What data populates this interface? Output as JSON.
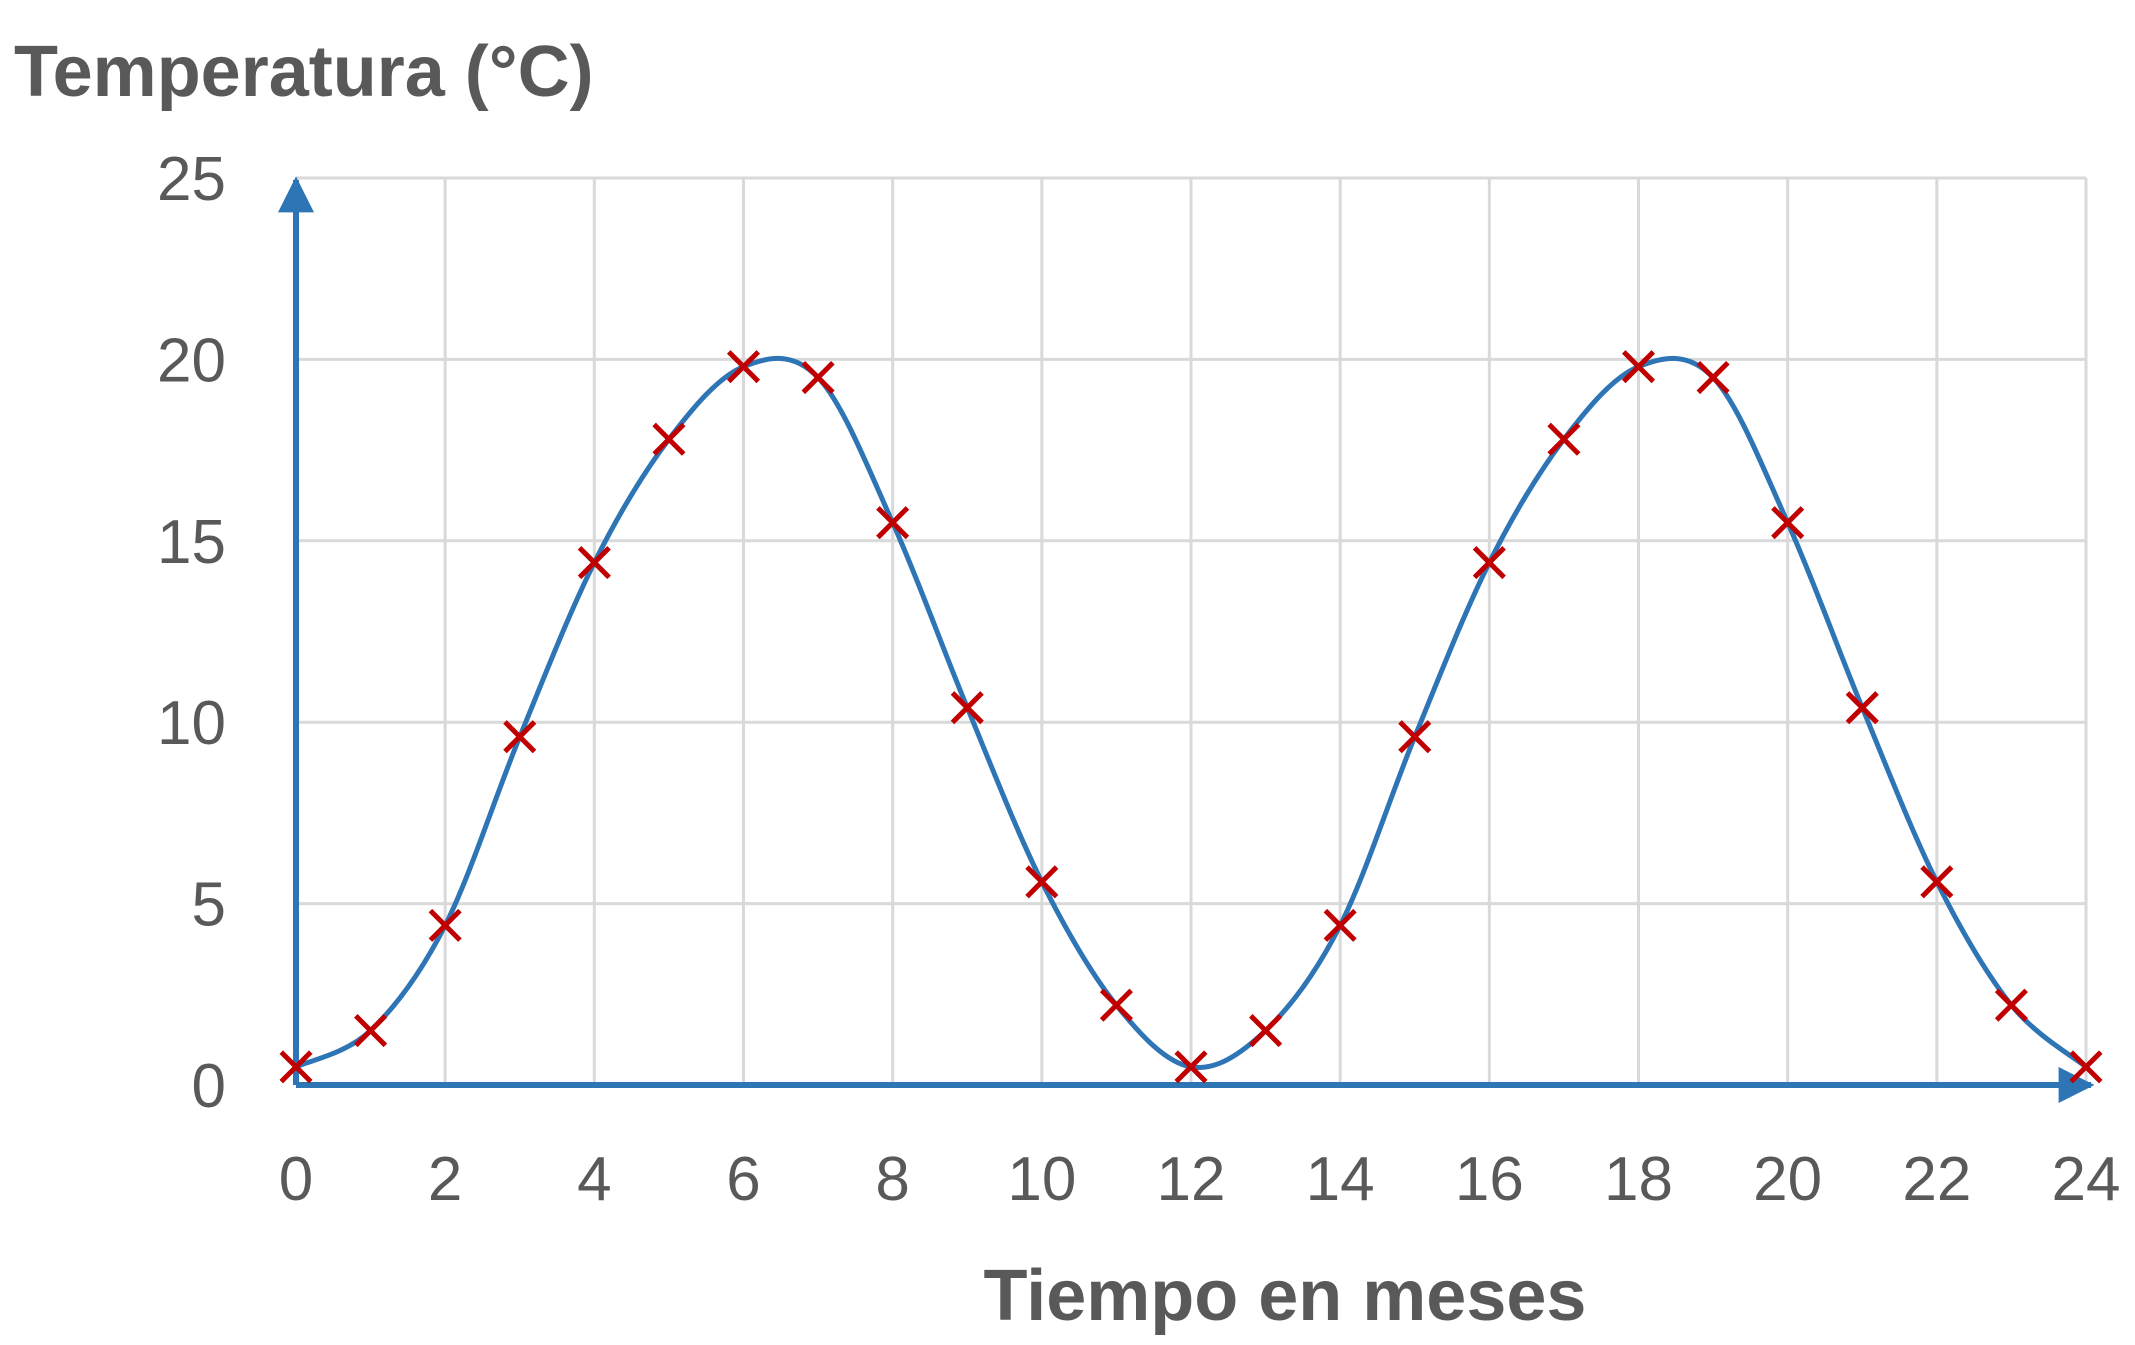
{
  "chart_data": {
    "type": "scatter",
    "title": "",
    "xlabel": "Tiempo en meses",
    "ylabel": "Temperatura (°C)",
    "xlim": [
      0,
      24
    ],
    "ylim": [
      0,
      25
    ],
    "x_ticks": [
      0,
      2,
      4,
      6,
      8,
      10,
      12,
      14,
      16,
      18,
      20,
      22,
      24
    ],
    "y_ticks": [
      0,
      5,
      10,
      15,
      20,
      25
    ],
    "grid": true,
    "legend": "none",
    "colors": {
      "curve": "#2E75B6",
      "markers": "#C00000",
      "axes": "#2E75B6",
      "grid": "#D9D9D9",
      "text": "#595959"
    },
    "series": [
      {
        "kind": "markers",
        "marker": "x",
        "x": [
          0,
          1,
          2,
          3,
          4,
          5,
          6,
          7,
          8,
          9,
          10,
          11,
          12,
          13,
          14,
          15,
          16,
          17,
          18,
          19,
          20,
          21,
          22,
          23,
          24
        ],
        "values": [
          0.5,
          1.5,
          4.4,
          9.6,
          14.4,
          17.8,
          19.8,
          19.5,
          15.5,
          10.4,
          5.6,
          2.2,
          0.5,
          1.5,
          4.4,
          9.6,
          14.4,
          17.8,
          19.8,
          19.5,
          15.5,
          10.4,
          5.6,
          2.2,
          0.5
        ]
      },
      {
        "kind": "smooth-line",
        "x": [
          0,
          1,
          2,
          3,
          4,
          5,
          6,
          7,
          8,
          9,
          10,
          11,
          12,
          13,
          14,
          15,
          16,
          17,
          18,
          19,
          20,
          21,
          22,
          23,
          24
        ],
        "values": [
          0.5,
          1.5,
          4.4,
          9.6,
          14.4,
          17.8,
          19.8,
          19.5,
          15.5,
          10.4,
          5.6,
          2.2,
          0.5,
          1.5,
          4.4,
          9.6,
          14.4,
          17.8,
          19.8,
          19.5,
          15.5,
          10.4,
          5.6,
          2.2,
          0.5
        ]
      }
    ]
  }
}
